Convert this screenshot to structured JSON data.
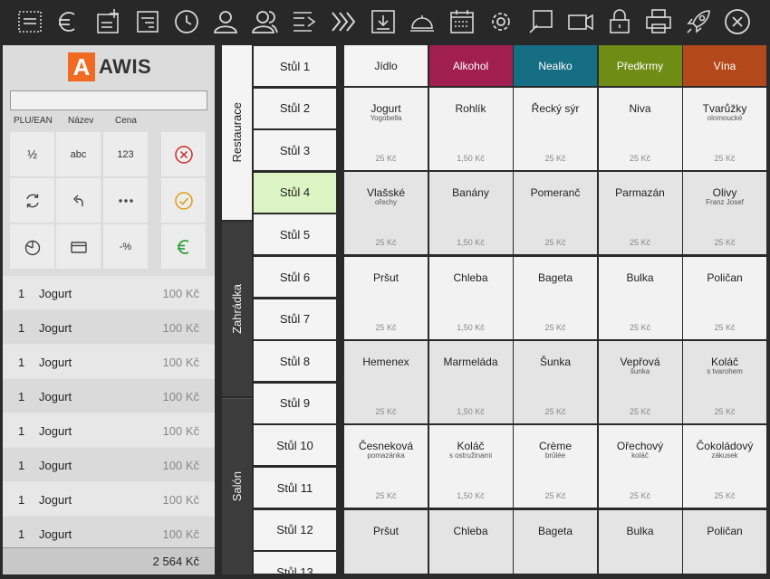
{
  "toolbar": {
    "icons": [
      "receipt-list-icon",
      "euro-icon",
      "add-document-icon",
      "document-icon",
      "history-icon",
      "user-icon",
      "users-icon",
      "transfer-icon",
      "fast-forward-icon",
      "download-icon",
      "service-bell-icon",
      "calendar-icon",
      "gear-icon",
      "note-icon",
      "camera-icon",
      "lock-icon",
      "printer-icon",
      "rocket-icon",
      "close-icon"
    ]
  },
  "left": {
    "logo_letter": "A",
    "logo_text": "AWIS",
    "plu_value": "",
    "columns": [
      "PLU/EAN",
      "Název",
      "Cena"
    ],
    "keys": [
      "½",
      "abc",
      "123"
    ],
    "discount_label": "-%"
  },
  "order": {
    "rows": [
      {
        "qty": "1",
        "name": "Jogurt",
        "price": "100 Kč"
      },
      {
        "qty": "1",
        "name": "Jogurt",
        "price": "100 Kč"
      },
      {
        "qty": "1",
        "name": "Jogurt",
        "price": "100 Kč"
      },
      {
        "qty": "1",
        "name": "Jogurt",
        "price": "100 Kč"
      },
      {
        "qty": "1",
        "name": "Jogurt",
        "price": "100 Kč"
      },
      {
        "qty": "1",
        "name": "Jogurt",
        "price": "100 Kč"
      },
      {
        "qty": "1",
        "name": "Jogurt",
        "price": "100 Kč"
      },
      {
        "qty": "1",
        "name": "Jogurt",
        "price": "100 Kč"
      }
    ],
    "total": "2 564 Kč"
  },
  "areas": [
    {
      "label": "Restaurace",
      "active": true
    },
    {
      "label": "Zahrádka",
      "active": false
    },
    {
      "label": "Salón",
      "active": false
    }
  ],
  "tables": {
    "selected_index": 3,
    "items": [
      "Stůl 1",
      "Stůl 2",
      "Stůl 3",
      "Stůl 4",
      "Stůl 5",
      "Stůl 6",
      "Stůl 7",
      "Stůl 8",
      "Stůl 9",
      "Stůl 10",
      "Stůl 11",
      "Stůl 12",
      "Stůl 13"
    ]
  },
  "categories": [
    {
      "label": "Jídlo",
      "color": "#f4f4f4",
      "text": "#222222"
    },
    {
      "label": "Alkohol",
      "color": "#a01f4f",
      "text": "#ffffff"
    },
    {
      "label": "Nealko",
      "color": "#166e84",
      "text": "#ffffff"
    },
    {
      "label": "Předkrmy",
      "color": "#6f8c14",
      "text": "#ffffff"
    },
    {
      "label": "Vína",
      "color": "#b3481a",
      "text": "#ffffff"
    }
  ],
  "products": [
    [
      {
        "name": "Jogurt",
        "sub": "Yogobella",
        "price": "25 Kč"
      },
      {
        "name": "Rohlík",
        "sub": "",
        "price": "1,50 Kč"
      },
      {
        "name": "Řecký sýr",
        "sub": "",
        "price": "25 Kč"
      },
      {
        "name": "Niva",
        "sub": "",
        "price": "25 Kč"
      },
      {
        "name": "Tvarůžky",
        "sub": "olomoucké",
        "price": "25 Kč"
      }
    ],
    [
      {
        "name": "Vlašské",
        "sub": "ořechy",
        "price": "25 Kč"
      },
      {
        "name": "Banány",
        "sub": "",
        "price": "1,50 Kč"
      },
      {
        "name": "Pomeranč",
        "sub": "",
        "price": "25 Kč"
      },
      {
        "name": "Parmazán",
        "sub": "",
        "price": "25 Kč"
      },
      {
        "name": "Olivy",
        "sub": "Franz Josef",
        "price": "25 Kč"
      }
    ],
    [
      {
        "name": "Pršut",
        "sub": "",
        "price": "25 Kč"
      },
      {
        "name": "Chleba",
        "sub": "",
        "price": "1,50 Kč"
      },
      {
        "name": "Bageta",
        "sub": "",
        "price": "25 Kč"
      },
      {
        "name": "Bulka",
        "sub": "",
        "price": "25 Kč"
      },
      {
        "name": "Poličan",
        "sub": "",
        "price": "25 Kč"
      }
    ],
    [
      {
        "name": "Hemenex",
        "sub": "",
        "price": "25 Kč"
      },
      {
        "name": "Marmeláda",
        "sub": "",
        "price": "1,50 Kč"
      },
      {
        "name": "Šunka",
        "sub": "",
        "price": "25 Kč"
      },
      {
        "name": "Vepřová",
        "sub": "šunka",
        "price": "25 Kč"
      },
      {
        "name": "Koláč",
        "sub": "s tvarohem",
        "price": "25 Kč"
      }
    ],
    [
      {
        "name": "Česneková",
        "sub": "pomazánka",
        "price": "25 Kč"
      },
      {
        "name": "Koláč",
        "sub": "s ostružinami",
        "price": "1,50 Kč"
      },
      {
        "name": "Crème",
        "sub": "brûlée",
        "price": "25 Kč"
      },
      {
        "name": "Ořechový",
        "sub": "koláč",
        "price": "25 Kč"
      },
      {
        "name": "Čokoládový",
        "sub": "zákusek",
        "price": "25 Kč"
      }
    ],
    [
      {
        "name": "Pršut",
        "sub": "",
        "price": ""
      },
      {
        "name": "Chleba",
        "sub": "",
        "price": ""
      },
      {
        "name": "Bageta",
        "sub": "",
        "price": ""
      },
      {
        "name": "Bulka",
        "sub": "",
        "price": ""
      },
      {
        "name": "Poličan",
        "sub": "",
        "price": ""
      }
    ]
  ]
}
